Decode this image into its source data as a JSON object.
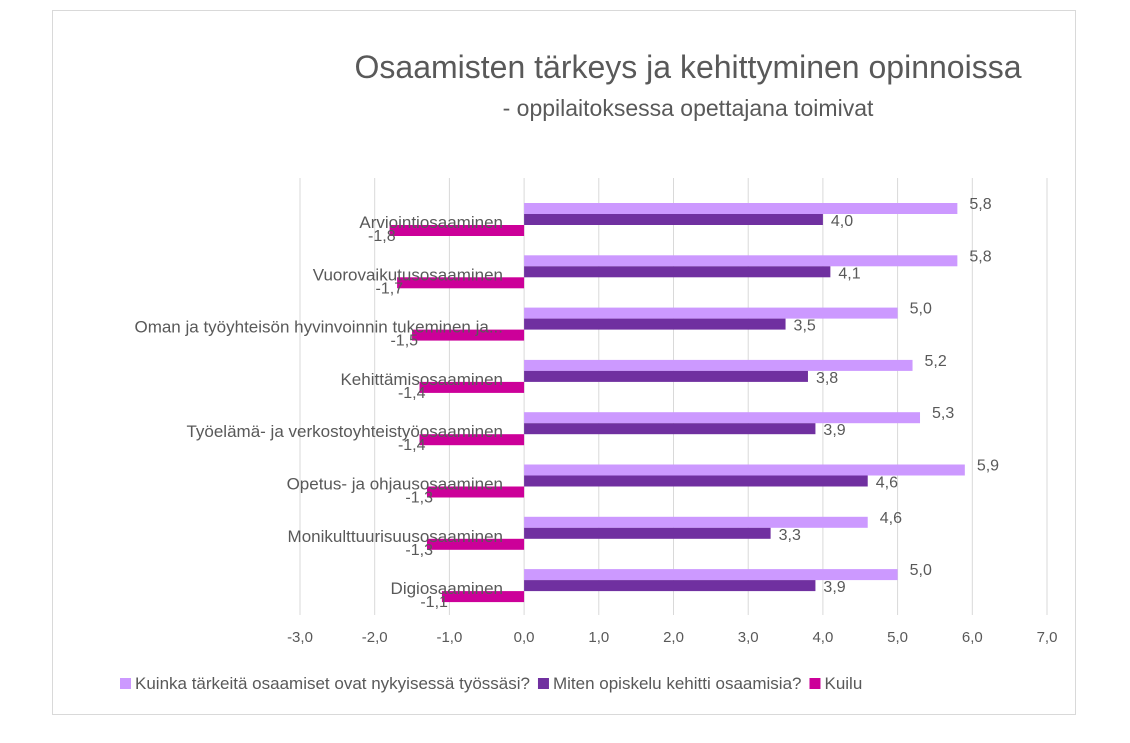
{
  "chart_data": {
    "type": "bar",
    "orientation": "horizontal",
    "title": "Osaamisten tärkeys ja kehittyminen opinnoissa",
    "subtitle": "- oppilaitoksessa opettajana toimivat",
    "categories": [
      "Arviointiosaaminen",
      "Vuorovaikutusosaaminen",
      "Oman ja työyhteisön hyvinvoinnin tukeminen ja...",
      "Kehittämisosaaminen",
      "Työelämä- ja verkostoyhteistyöosaaminen",
      "Opetus- ja ohjausosaaminen",
      "Monikulttuurisuusosaaminen",
      "Digiosaaminen"
    ],
    "series": [
      {
        "name": "Kuinka tärkeitä osaamiset ovat nykyisessä työssäsi?",
        "color": "#cc99ff",
        "values": [
          5.8,
          5.8,
          5.0,
          5.2,
          5.3,
          5.9,
          4.6,
          5.0
        ],
        "labels": [
          "5,8",
          "5,8",
          "5,0",
          "5,2",
          "5,3",
          "5,9",
          "4,6",
          "5,0"
        ]
      },
      {
        "name": "Miten opiskelu kehitti osaamisia?",
        "color": "#7030a0",
        "values": [
          4.0,
          4.1,
          3.5,
          3.8,
          3.9,
          4.6,
          3.3,
          3.9
        ],
        "labels": [
          "4,0",
          "4,1",
          "3,5",
          "3,8",
          "3,9",
          "4,6",
          "3,3",
          "3,9"
        ]
      },
      {
        "name": "Kuilu",
        "color": "#cc0099",
        "values": [
          -1.8,
          -1.7,
          -1.5,
          -1.4,
          -1.4,
          -1.3,
          -1.3,
          -1.1
        ],
        "labels": [
          "-1,8",
          "-1,7",
          "-1,5",
          "-1,4",
          "-1,4",
          "-1,3",
          "-1,3",
          "-1,1"
        ]
      }
    ],
    "xlim": [
      -3,
      7
    ],
    "xticks": [
      "-3,0",
      "-2,0",
      "-1,0",
      "0,0",
      "1,0",
      "2,0",
      "3,0",
      "4,0",
      "5,0",
      "6,0",
      "7,0"
    ],
    "grid": true,
    "legend_position": "bottom"
  }
}
